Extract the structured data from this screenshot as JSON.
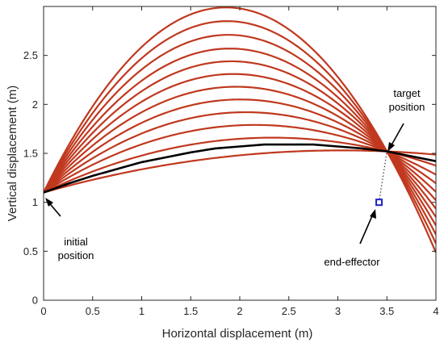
{
  "chart_data": {
    "type": "line",
    "title": "",
    "xlabel": "Horizontal displacement (m)",
    "ylabel": "Vertical displacement (m)",
    "xlim": [
      0,
      4
    ],
    "ylim": [
      0,
      3
    ],
    "xticks": [
      0,
      0.5,
      1,
      1.5,
      2,
      2.5,
      3,
      3.5,
      4
    ],
    "yticks": [
      0,
      0.5,
      1,
      1.5,
      2,
      2.5
    ],
    "xtick_labels": [
      "0",
      "0.5",
      "1",
      "1.5",
      "2",
      "2.5",
      "3",
      "3.5",
      "4"
    ],
    "ytick_labels": [
      "0",
      "0.5",
      "1",
      "1.5",
      "2",
      "2.5"
    ],
    "grid": false,
    "initial_position": [
      0,
      1.1
    ],
    "target_position": [
      3.5,
      1.52
    ],
    "end_effector": [
      3.42,
      1.0
    ],
    "family_color": "#c0381e",
    "selected_color": "#000000",
    "end_effector_color": "#1f24c8",
    "trajectory_apex_heights": [
      1.53,
      1.66,
      1.79,
      1.92,
      2.05,
      2.18,
      2.31,
      2.44,
      2.57,
      2.71,
      2.85,
      2.99
    ],
    "selected_trajectory": {
      "x": [
        0,
        0.25,
        0.5,
        0.75,
        1,
        1.25,
        1.5,
        1.75,
        2,
        2.25,
        2.5,
        2.75,
        3,
        3.25,
        3.5,
        3.75,
        4
      ],
      "y": [
        1.1,
        1.19,
        1.27,
        1.34,
        1.41,
        1.46,
        1.51,
        1.55,
        1.57,
        1.59,
        1.59,
        1.59,
        1.57,
        1.55,
        1.52,
        1.47,
        1.42
      ]
    },
    "annotations": [
      {
        "text": "initial",
        "text2": "position"
      },
      {
        "text": "target",
        "text2": "position"
      },
      {
        "text": "end-effector"
      }
    ]
  }
}
